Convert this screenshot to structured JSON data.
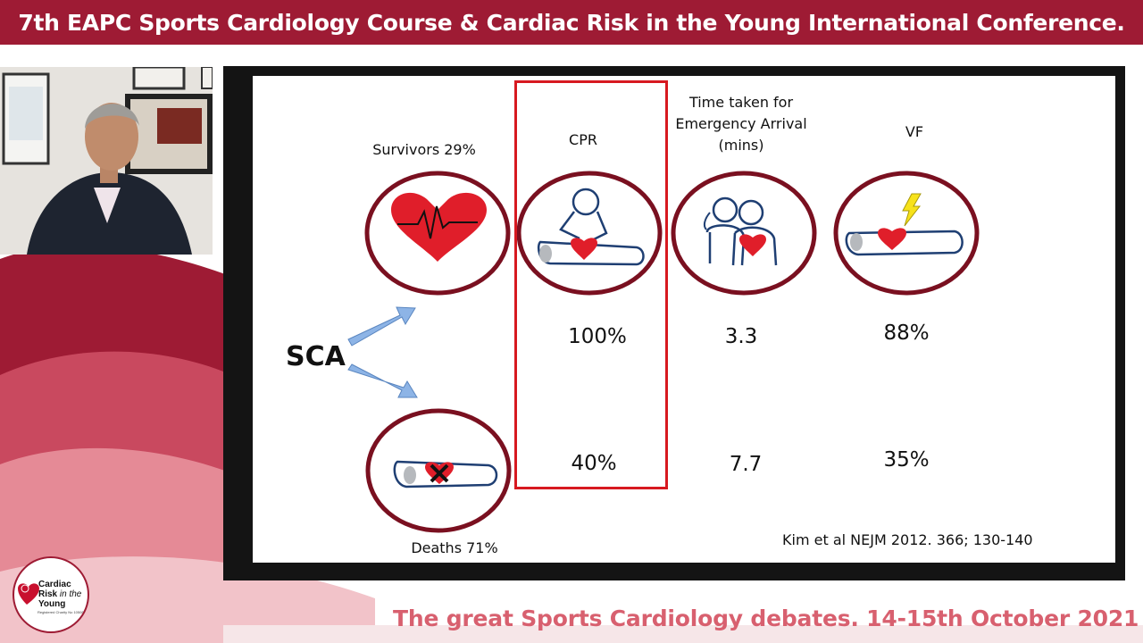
{
  "header": {
    "title": "7th EAPC Sports Cardiology Course & Cardiac Risk in the Young International Conference."
  },
  "slide": {
    "survivors_label": "Survivors 29%",
    "deaths_label": "Deaths 71%",
    "sca_label": "SCA",
    "columns": [
      {
        "header_lines": [
          "CPR"
        ],
        "survivors_value": "100%",
        "deaths_value": "40%"
      },
      {
        "header_lines": [
          "Time taken for",
          "Emergency Arrival",
          "(mins)"
        ],
        "survivors_value": "3.3",
        "deaths_value": "7.7"
      },
      {
        "header_lines": [
          "VF"
        ],
        "survivors_value": "88%",
        "deaths_value": "35%"
      }
    ],
    "citation": "Kim et al NEJM 2012. 366; 130-140",
    "icons": [
      "heart-ecg-icon",
      "cpr-icon",
      "emergency-responder-icon",
      "vf-shock-icon",
      "deceased-patient-icon",
      "arrow-up-icon",
      "arrow-down-icon"
    ]
  },
  "logo": {
    "line1": "Cardiac",
    "line2a": "Risk",
    "line2b": " in the",
    "line3": "Young",
    "subtitle": "Registered Charity No 1050845"
  },
  "footer": {
    "title": "The great Sports Cardiology debates. 14-15th October 2021"
  },
  "colors": {
    "banner": "#9e1b34",
    "accent_pink": "#d8606f",
    "circle_outline": "#7a1020",
    "highlight_box": "#d71920",
    "heart": "#e01e2a",
    "figure_line": "#1f3f73"
  }
}
